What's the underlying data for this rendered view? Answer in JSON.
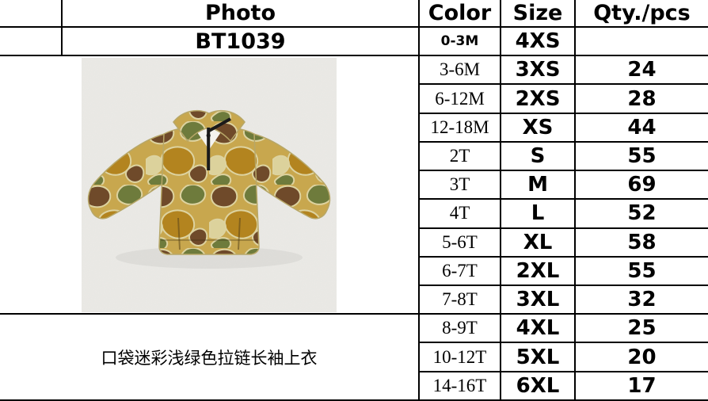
{
  "table": {
    "columns": {
      "photo": "Photo",
      "color": "Color",
      "size": "Size",
      "qty": "Qty./pcs"
    },
    "product_code": "BT1039",
    "rows": [
      {
        "color": "0-3M",
        "size": "4XS",
        "qty": ""
      },
      {
        "color": "3-6M",
        "size": "3XS",
        "qty": "24"
      },
      {
        "color": "6-12M",
        "size": "2XS",
        "qty": "28"
      },
      {
        "color": "12-18M",
        "size": "XS",
        "qty": "44"
      },
      {
        "color": "2T",
        "size": "S",
        "qty": "55"
      },
      {
        "color": "3T",
        "size": "M",
        "qty": "69"
      },
      {
        "color": "4T",
        "size": "L",
        "qty": "52"
      },
      {
        "color": "5-6T",
        "size": "XL",
        "qty": "58"
      },
      {
        "color": "6-7T",
        "size": "2XL",
        "qty": "55"
      },
      {
        "color": "7-8T",
        "size": "3XL",
        "qty": "32"
      },
      {
        "color": "8-9T",
        "size": "4XL",
        "qty": "25"
      },
      {
        "color": "10-12T",
        "size": "5XL",
        "qty": "20"
      },
      {
        "color": "14-16T",
        "size": "6XL",
        "qty": "17"
      }
    ],
    "description": "口袋迷彩浅绿色拉链长袖上衣"
  },
  "photo": {
    "subject": "camo-quarter-zip-pullover-photo",
    "palette": {
      "background": "#ebeae6",
      "base": "#c8a74e",
      "brown": "#6f4a2a",
      "olive": "#6e7b3c",
      "gold": "#b3841f",
      "cream": "#dcd29c",
      "zipper": "#1a1a1a"
    }
  }
}
